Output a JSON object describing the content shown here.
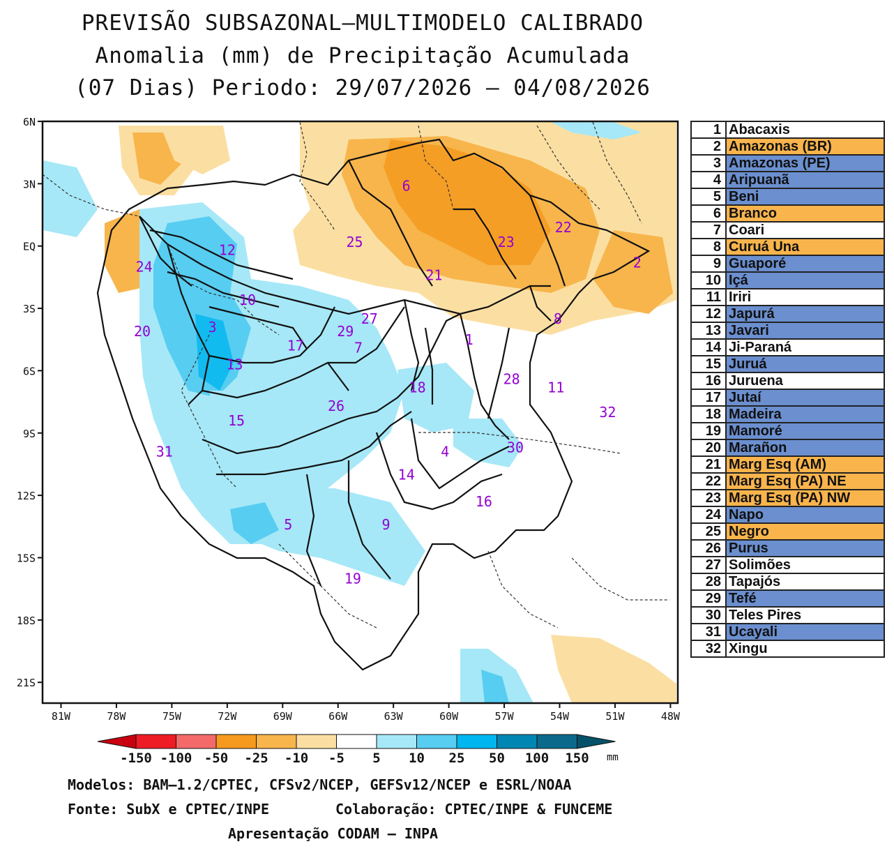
{
  "title": {
    "line1": "PREVISÃO SUBSAZONAL—MULTIMODELO CALIBRADO",
    "line2": "Anomalia (mm) de Precipitação Acumulada",
    "line3": "(07 Dias) Periodo: 29/07/2026 — 04/08/2026"
  },
  "map": {
    "lat_labels": [
      "6N",
      "3N",
      "EQ",
      "3S",
      "6S",
      "9S",
      "12S",
      "15S",
      "18S",
      "21S"
    ],
    "lat_values": [
      6,
      3,
      0,
      -3,
      -6,
      -9,
      -12,
      -15,
      -18,
      -21
    ],
    "lon_labels": [
      "81W",
      "78W",
      "75W",
      "72W",
      "69W",
      "66W",
      "63W",
      "60W",
      "57W",
      "54W",
      "51W",
      "48W"
    ],
    "lon_values": [
      -81,
      -78,
      -75,
      -72,
      -69,
      -66,
      -63,
      -60,
      -57,
      -54,
      -51,
      -48
    ],
    "basin_labels": [
      {
        "n": "1",
        "lon": -58.9,
        "lat": -4.5
      },
      {
        "n": "2",
        "lon": -49.8,
        "lat": -0.8
      },
      {
        "n": "3",
        "lon": -72.8,
        "lat": -3.9
      },
      {
        "n": "4",
        "lon": -60.2,
        "lat": -9.9
      },
      {
        "n": "5",
        "lon": -68.7,
        "lat": -13.4
      },
      {
        "n": "6",
        "lon": -62.3,
        "lat": 2.9
      },
      {
        "n": "7",
        "lon": -64.9,
        "lat": -4.9
      },
      {
        "n": "8",
        "lon": -54.1,
        "lat": -3.5
      },
      {
        "n": "9",
        "lon": -63.4,
        "lat": -13.4
      },
      {
        "n": "10",
        "lon": -70.9,
        "lat": -2.6
      },
      {
        "n": "11",
        "lon": -54.2,
        "lat": -6.8
      },
      {
        "n": "12",
        "lon": -72.0,
        "lat": -0.2
      },
      {
        "n": "13",
        "lon": -71.6,
        "lat": -5.7
      },
      {
        "n": "14",
        "lon": -62.3,
        "lat": -11.0
      },
      {
        "n": "15",
        "lon": -71.5,
        "lat": -8.4
      },
      {
        "n": "16",
        "lon": -58.1,
        "lat": -12.3
      },
      {
        "n": "17",
        "lon": -68.3,
        "lat": -4.8
      },
      {
        "n": "18",
        "lon": -61.7,
        "lat": -6.8
      },
      {
        "n": "19",
        "lon": -65.2,
        "lat": -16.0
      },
      {
        "n": "20",
        "lon": -76.6,
        "lat": -4.1
      },
      {
        "n": "21",
        "lon": -60.8,
        "lat": -1.4
      },
      {
        "n": "22",
        "lon": -53.8,
        "lat": 0.9
      },
      {
        "n": "23",
        "lon": -56.9,
        "lat": 0.2
      },
      {
        "n": "24",
        "lon": -76.5,
        "lat": -1.0
      },
      {
        "n": "25",
        "lon": -65.1,
        "lat": 0.2
      },
      {
        "n": "26",
        "lon": -66.1,
        "lat": -7.7
      },
      {
        "n": "27",
        "lon": -64.3,
        "lat": -3.5
      },
      {
        "n": "28",
        "lon": -56.6,
        "lat": -6.4
      },
      {
        "n": "29",
        "lon": -65.6,
        "lat": -4.1
      },
      {
        "n": "30",
        "lon": -56.4,
        "lat": -9.7
      },
      {
        "n": "31",
        "lon": -75.4,
        "lat": -9.9
      },
      {
        "n": "32",
        "lon": -51.4,
        "lat": -8.0
      }
    ]
  },
  "legend_basins": [
    {
      "n": "1",
      "name": "Abacaxis",
      "color": "#ffffff"
    },
    {
      "n": "2",
      "name": "Amazonas (BR)",
      "color": "#f9b44c"
    },
    {
      "n": "3",
      "name": "Amazonas (PE)",
      "color": "#6b8fcf"
    },
    {
      "n": "4",
      "name": "Aripuanã",
      "color": "#6b8fcf"
    },
    {
      "n": "5",
      "name": "Beni",
      "color": "#6b8fcf"
    },
    {
      "n": "6",
      "name": "Branco",
      "color": "#f9b44c"
    },
    {
      "n": "7",
      "name": "Coari",
      "color": "#ffffff"
    },
    {
      "n": "8",
      "name": "Curuá Una",
      "color": "#f9b44c"
    },
    {
      "n": "9",
      "name": "Guaporé",
      "color": "#6b8fcf"
    },
    {
      "n": "10",
      "name": "Içá",
      "color": "#6b8fcf"
    },
    {
      "n": "11",
      "name": "Iriri",
      "color": "#ffffff"
    },
    {
      "n": "12",
      "name": "Japurá",
      "color": "#6b8fcf"
    },
    {
      "n": "13",
      "name": "Javari",
      "color": "#6b8fcf"
    },
    {
      "n": "14",
      "name": "Ji-Paraná",
      "color": "#ffffff"
    },
    {
      "n": "15",
      "name": "Juruá",
      "color": "#6b8fcf"
    },
    {
      "n": "16",
      "name": "Juruena",
      "color": "#ffffff"
    },
    {
      "n": "17",
      "name": "Jutaí",
      "color": "#6b8fcf"
    },
    {
      "n": "18",
      "name": "Madeira",
      "color": "#6b8fcf"
    },
    {
      "n": "19",
      "name": "Mamoré",
      "color": "#6b8fcf"
    },
    {
      "n": "20",
      "name": "Marañon",
      "color": "#6b8fcf"
    },
    {
      "n": "21",
      "name": "Marg Esq (AM)",
      "color": "#f9b44c"
    },
    {
      "n": "22",
      "name": "Marg Esq (PA) NE",
      "color": "#f9b44c"
    },
    {
      "n": "23",
      "name": "Marg Esq (PA) NW",
      "color": "#f9b44c"
    },
    {
      "n": "24",
      "name": "Napo",
      "color": "#6b8fcf"
    },
    {
      "n": "25",
      "name": "Negro",
      "color": "#f9b44c"
    },
    {
      "n": "26",
      "name": "Purus",
      "color": "#6b8fcf"
    },
    {
      "n": "27",
      "name": "Solimões",
      "color": "#ffffff"
    },
    {
      "n": "28",
      "name": "Tapajós",
      "color": "#ffffff"
    },
    {
      "n": "29",
      "name": "Tefé",
      "color": "#6b8fcf"
    },
    {
      "n": "30",
      "name": "Teles Pires",
      "color": "#ffffff"
    },
    {
      "n": "31",
      "name": "Ucayali",
      "color": "#6b8fcf"
    },
    {
      "n": "32",
      "name": "Xingu",
      "color": "#ffffff"
    }
  ],
  "colorbar": {
    "labels": [
      "-150",
      "-100",
      "-50",
      "-25",
      "-10",
      "-5",
      "5",
      "10",
      "25",
      "50",
      "100",
      "150"
    ],
    "unit": "mm",
    "colors": [
      "#c8000f",
      "#ee1c25",
      "#f46a6a",
      "#f59a1e",
      "#f7b54c",
      "#fbdfa2",
      "#ffffff",
      "#a6e8f7",
      "#57cdf1",
      "#00b6ef",
      "#0086b3",
      "#0b6a8c",
      "#05516a"
    ]
  },
  "footer": {
    "models": "Modelos: BAM—1.2/CPTEC, CFSv2/NCEP, GEFSv12/NCEP e ESRL/NOAA",
    "source": "Fonte: SubX e CPTEC/INPE",
    "collab": "Colaboração: CPTEC/INPE & FUNCEME",
    "presentation": "Apresentação CODAM — INPA"
  }
}
